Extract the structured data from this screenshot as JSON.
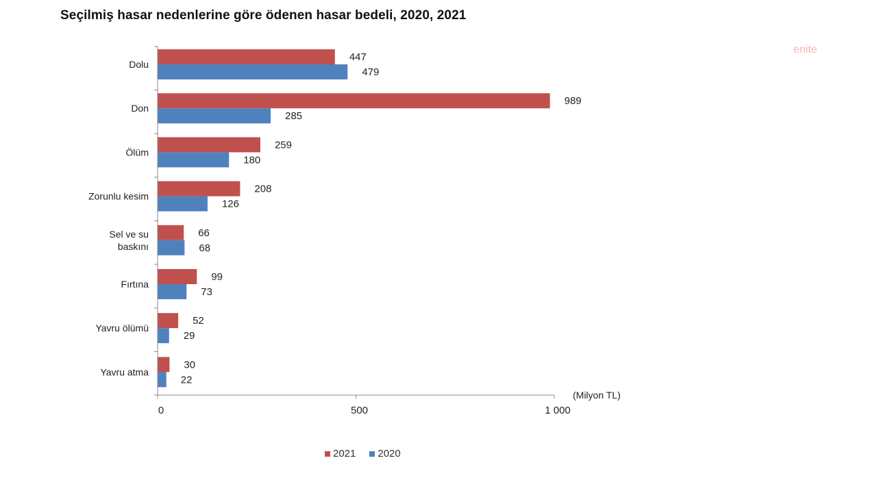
{
  "watermark": "enite",
  "chart_data": {
    "type": "bar",
    "orientation": "horizontal",
    "title": "Seçilmiş hasar nedenlerine göre ödenen hasar bedeli, 2020, 2021",
    "unit_label": "(Milyon TL)",
    "categories": [
      [
        "Dolu"
      ],
      [
        "Don"
      ],
      [
        "Ölüm"
      ],
      [
        "Zorunlu kesim"
      ],
      [
        "Sel ve su",
        "baskını"
      ],
      [
        "Fırtına"
      ],
      [
        "Yavru ölümü"
      ],
      [
        "Yavru atma"
      ]
    ],
    "series": [
      {
        "name": "2021",
        "color": "#c0504d",
        "values": [
          447,
          989,
          259,
          208,
          66,
          99,
          52,
          30
        ],
        "labels": [
          "447",
          "989",
          "259",
          "208",
          "66",
          "99",
          "52",
          "30"
        ]
      },
      {
        "name": "2020",
        "color": "#4f81bd",
        "values": [
          479,
          285,
          180,
          126,
          68,
          73,
          29,
          22
        ],
        "labels": [
          "479",
          "285",
          "180",
          "126",
          "68",
          "73",
          "29",
          "22"
        ]
      }
    ],
    "xlim": [
      0,
      1000
    ],
    "xticks": [
      {
        "value": 0,
        "label": "0"
      },
      {
        "value": 500,
        "label": "500"
      },
      {
        "value": 1000,
        "label": "1 000"
      }
    ],
    "grid": false,
    "legend_position": "bottom"
  }
}
